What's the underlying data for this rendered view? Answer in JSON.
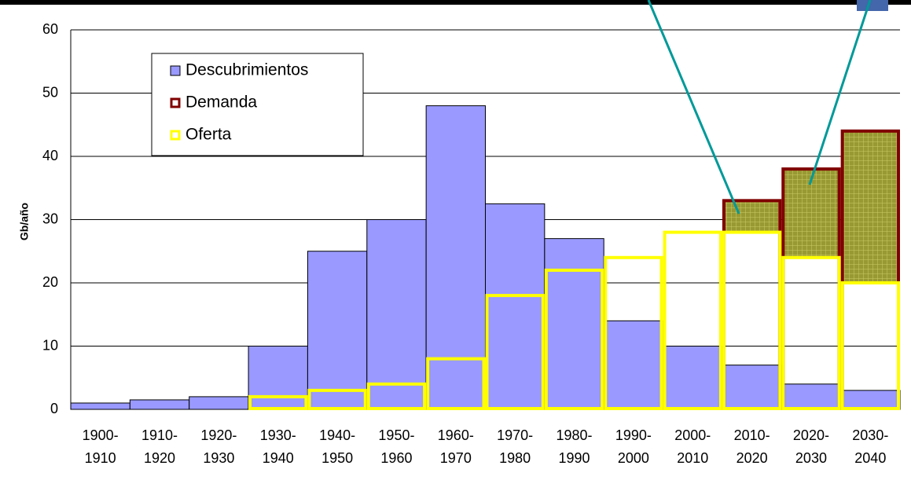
{
  "chart_data": {
    "type": "bar",
    "ylabel": "Gb/año",
    "categories": [
      "1900-1910",
      "1910-1920",
      "1920-1930",
      "1930-1940",
      "1940-1950",
      "1950-1960",
      "1960-1970",
      "1970-1980",
      "1980-1990",
      "1990-2000",
      "2000-2010",
      "2010-2020",
      "2020-2030",
      "2030-2040"
    ],
    "series": [
      {
        "name": "Descubrimientos",
        "color": "#9999ff",
        "values": [
          1,
          1.5,
          2,
          10,
          25,
          30,
          48,
          32.5,
          27,
          14,
          10,
          7,
          4,
          3
        ]
      },
      {
        "name": "Demanda",
        "color": "#800000",
        "values": [
          null,
          null,
          null,
          null,
          null,
          null,
          null,
          null,
          null,
          null,
          null,
          33,
          38,
          44
        ]
      },
      {
        "name": "Oferta",
        "color": "#ffff00",
        "values": [
          null,
          null,
          null,
          2,
          3,
          4,
          8,
          18,
          22,
          24,
          28,
          28,
          24,
          20
        ]
      }
    ],
    "ylim": [
      0,
      60
    ],
    "yticks": [
      0,
      10,
      20,
      30,
      40,
      50,
      60
    ],
    "grid": true
  }
}
